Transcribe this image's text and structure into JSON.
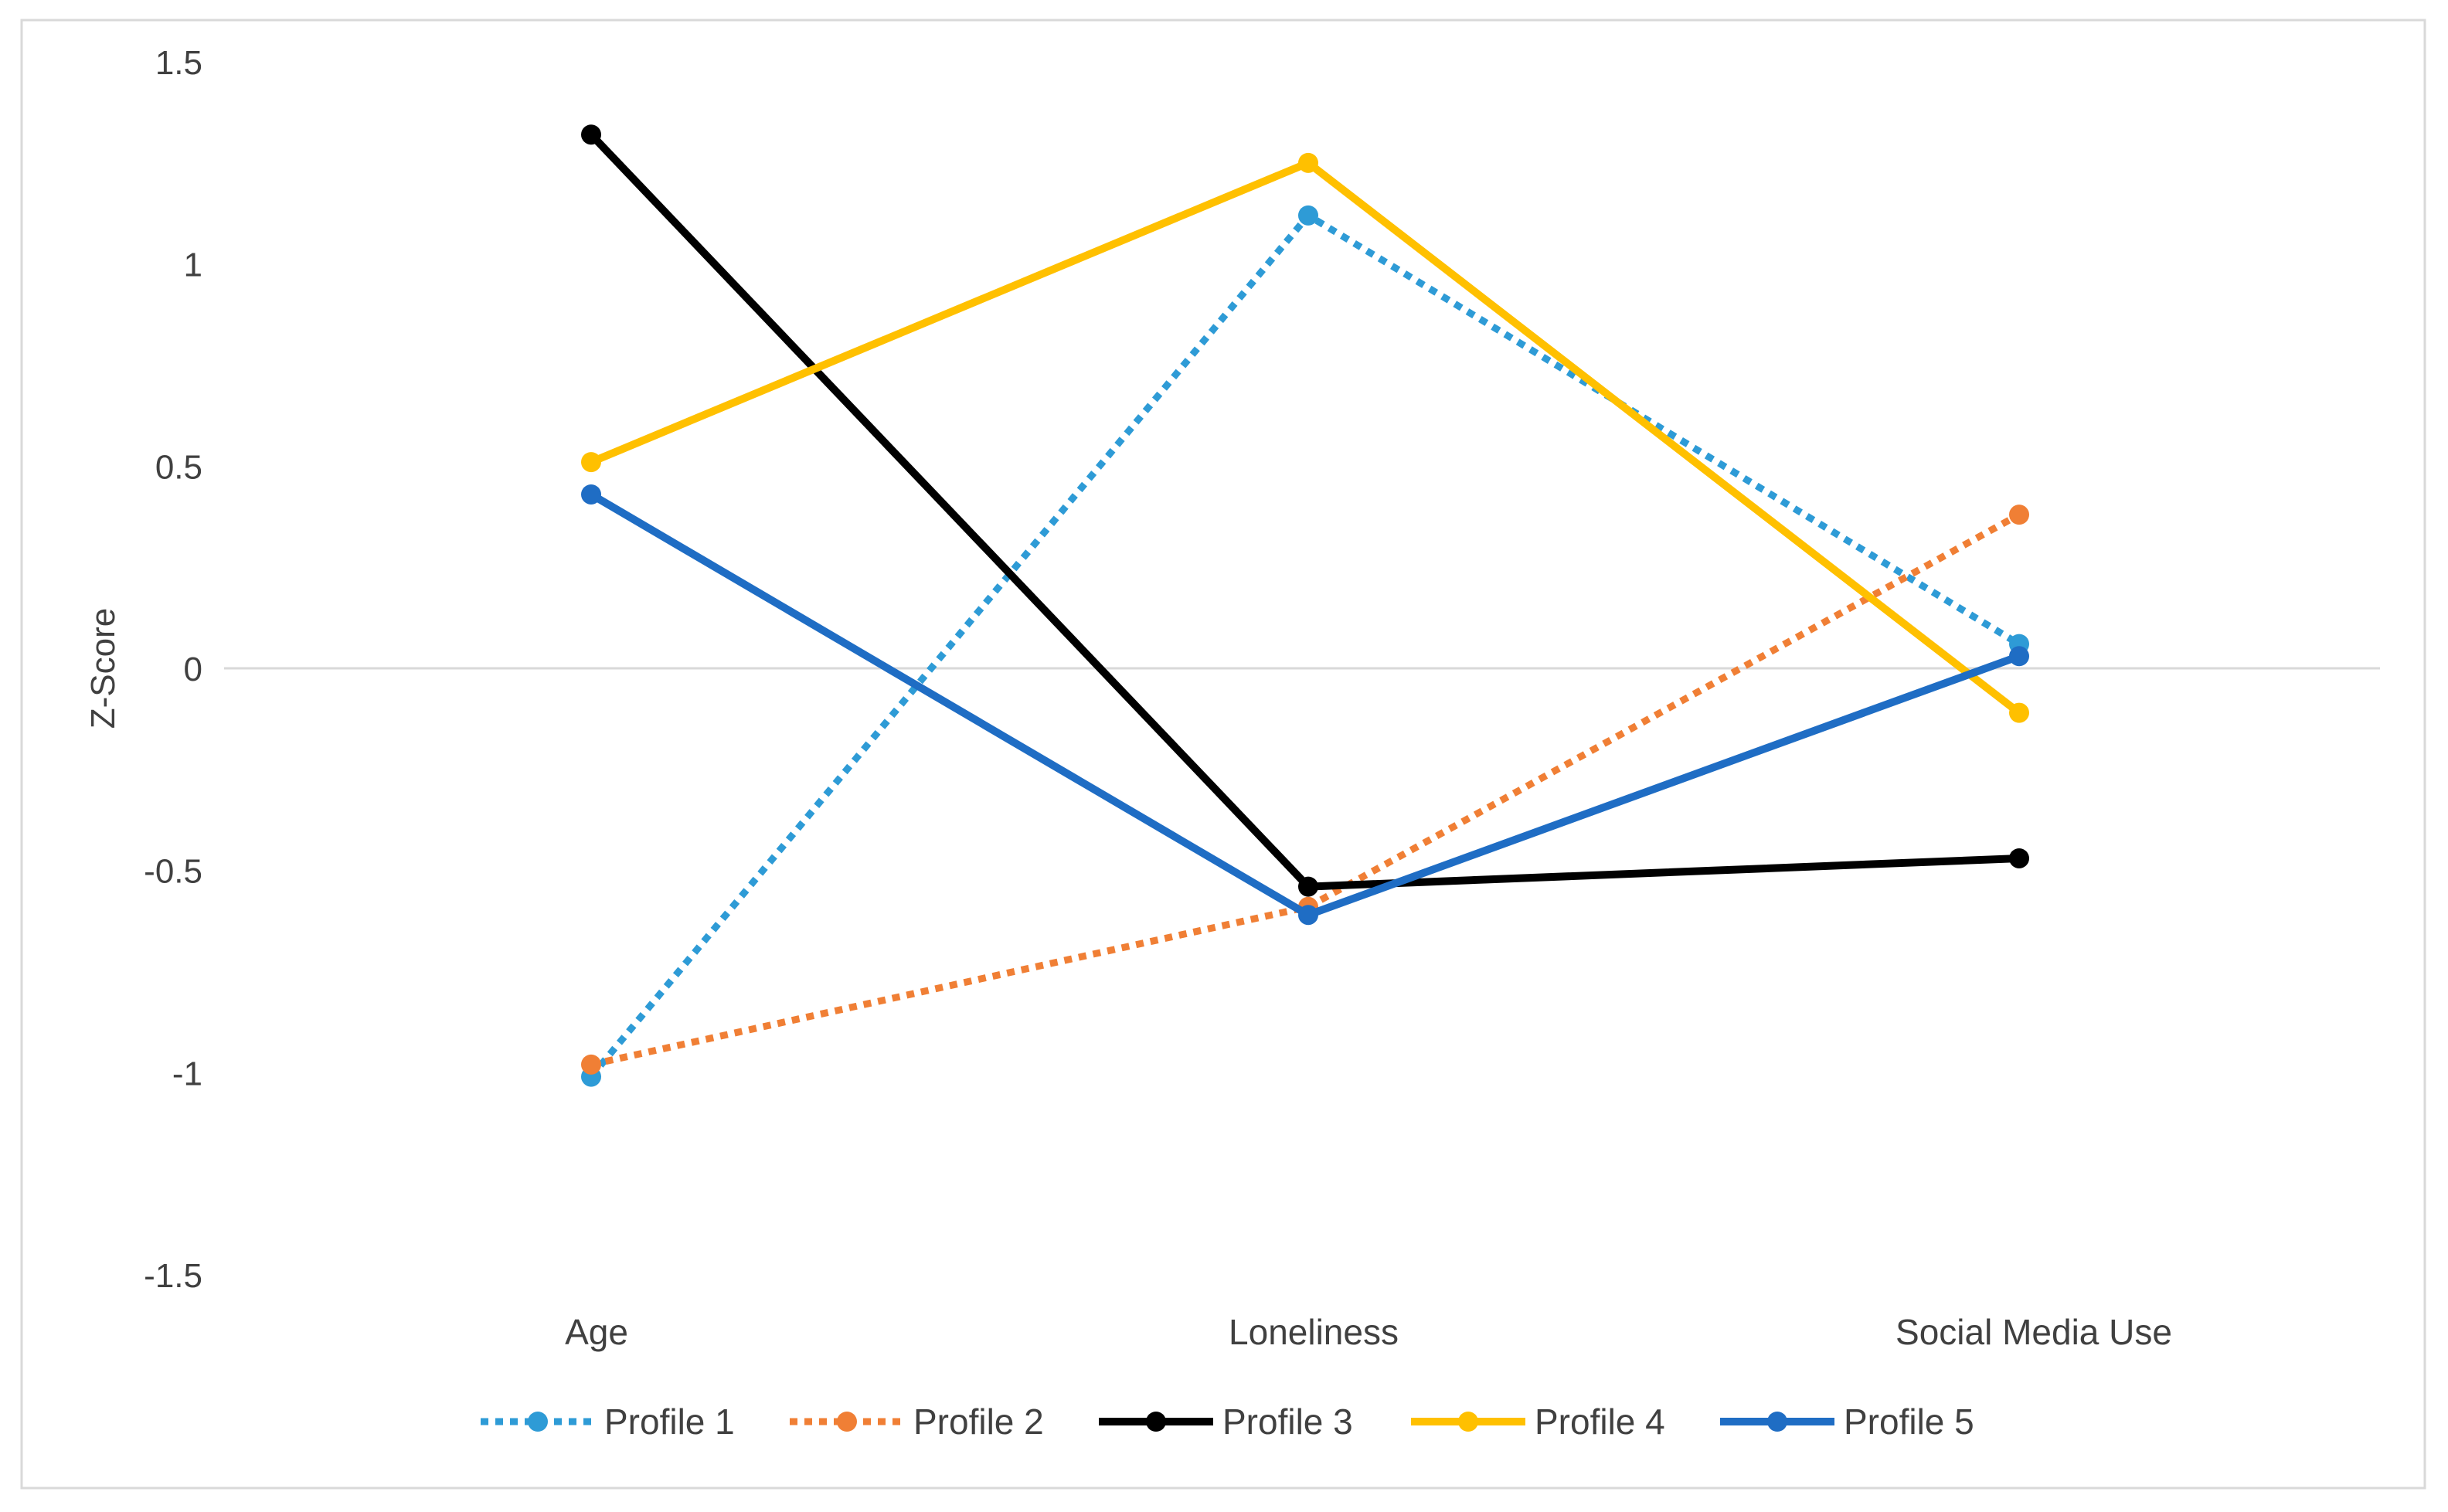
{
  "chart_data": {
    "type": "line",
    "title": "",
    "xlabel": "",
    "ylabel": "Z-Score",
    "ylim": [
      -1.5,
      1.5
    ],
    "yticks": [
      "1.5",
      "1",
      "0.5",
      "0",
      "-0.5",
      "-1",
      "-1.5"
    ],
    "categories": [
      "Age",
      "Loneliness",
      "Social Media Use"
    ],
    "grid": "zero line only",
    "legend_position": "bottom",
    "series": [
      {
        "name": "Profile 1",
        "values": [
          -1.01,
          1.12,
          0.06
        ],
        "color": "#2E9BD6",
        "dashed": true
      },
      {
        "name": "Profile 2",
        "values": [
          -0.98,
          -0.59,
          0.38
        ],
        "color": "#F07F35",
        "dashed": true
      },
      {
        "name": "Profile 3",
        "values": [
          1.32,
          -0.54,
          -0.47
        ],
        "color": "#000000",
        "dashed": false
      },
      {
        "name": "Profile 4",
        "values": [
          0.51,
          1.25,
          -0.11
        ],
        "color": "#FFC000",
        "dashed": false
      },
      {
        "name": "Profile 5",
        "values": [
          0.43,
          -0.61,
          0.03
        ],
        "color": "#1F6DC4",
        "dashed": false
      }
    ]
  }
}
